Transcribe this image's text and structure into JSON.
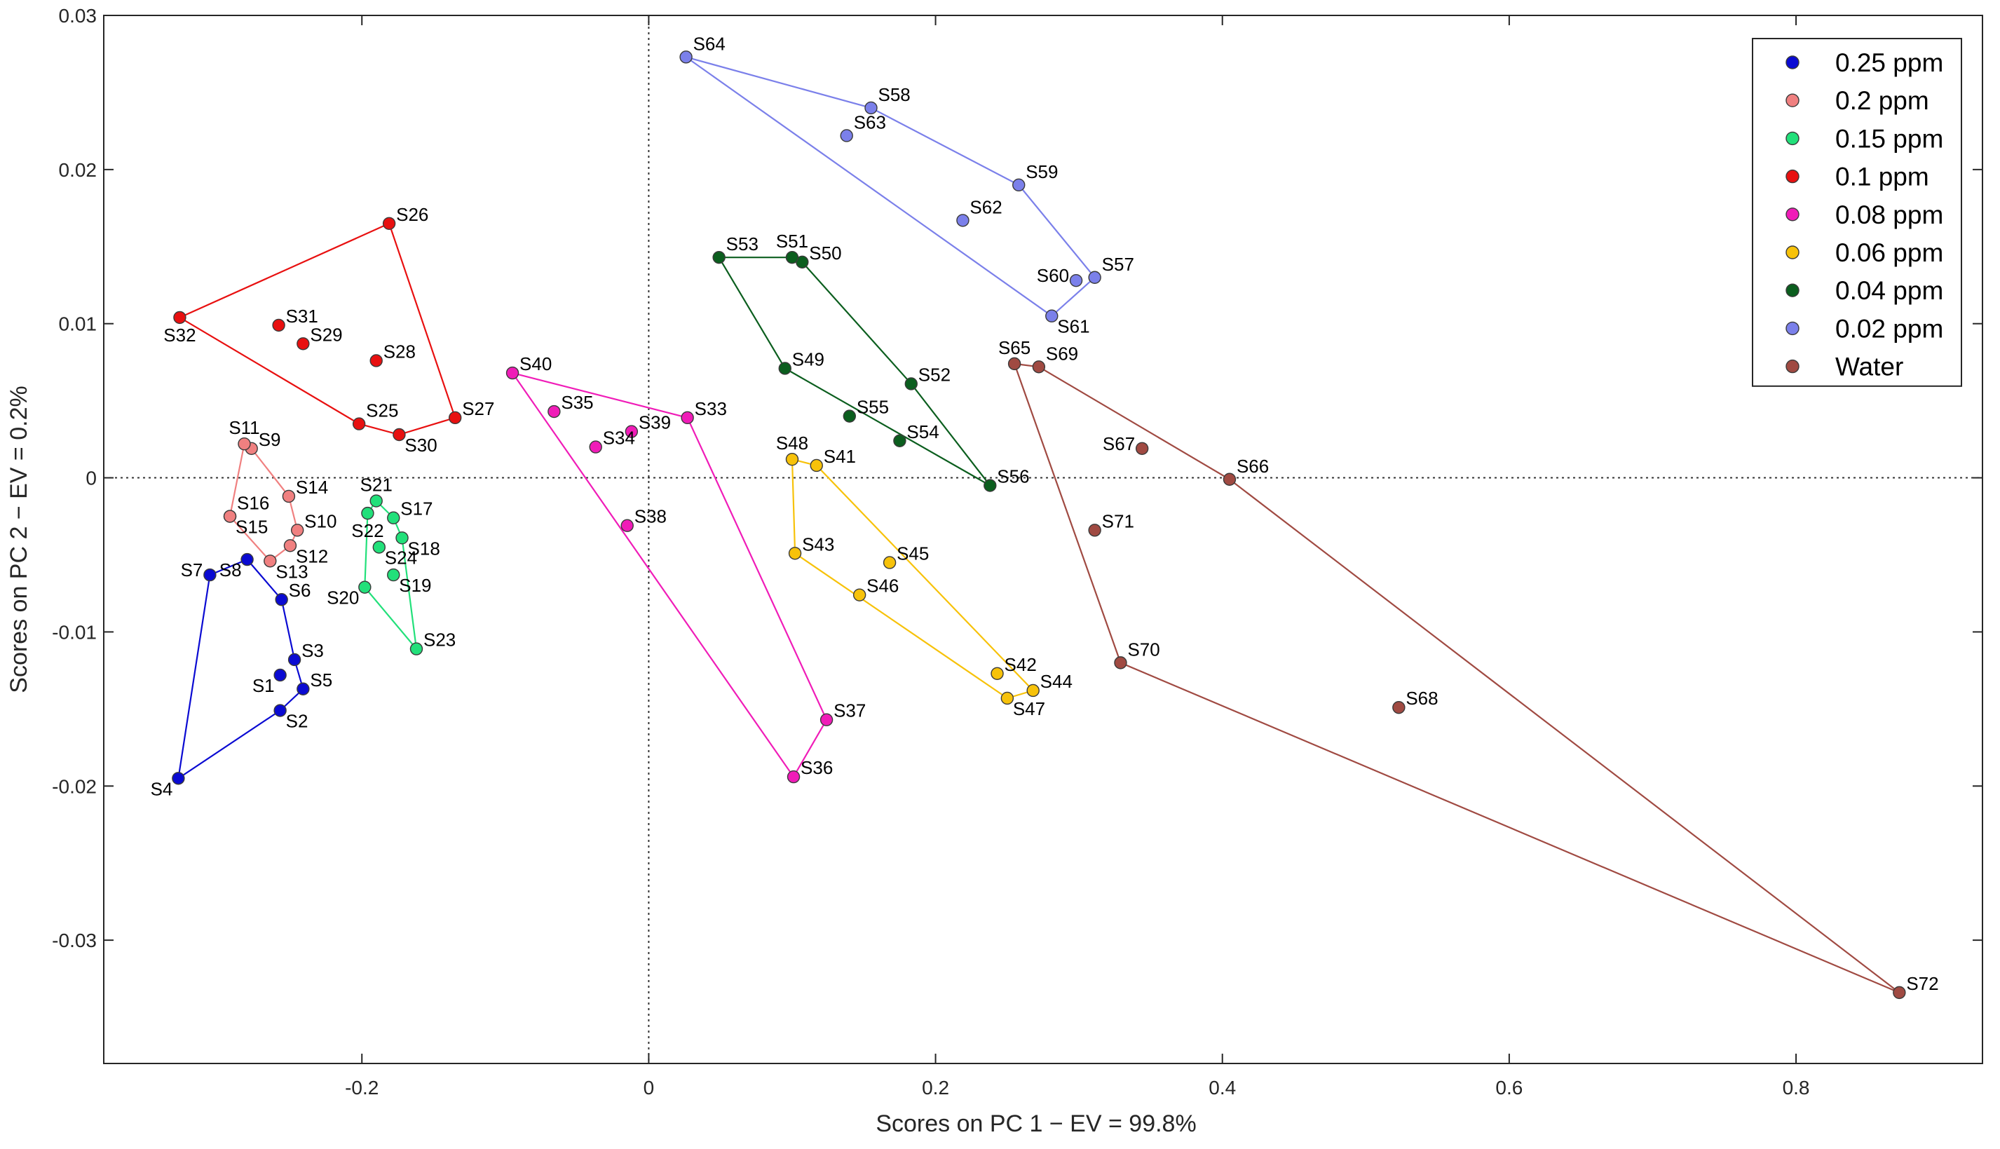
{
  "chart_data": {
    "type": "scatter",
    "xlabel": "Scores  on PC 1 − EV = 99.8%",
    "ylabel": "Scores  on PC 2 − EV = 0.2%",
    "xlim": [
      -0.38,
      0.93
    ],
    "ylim": [
      -0.038,
      0.03
    ],
    "xticks": [
      -0.2,
      0,
      0.2,
      0.4,
      0.6,
      0.8
    ],
    "yticks": [
      0.03,
      0.02,
      0.01,
      0,
      -0.01,
      -0.02,
      -0.03
    ],
    "xtick_labels": [
      "-0.2",
      "0",
      "0.2",
      "0.4",
      "0.6",
      "0.8"
    ],
    "ytick_labels": [
      "0.03",
      "0.02",
      "0.01",
      "0",
      "-0.01",
      "-0.02",
      "-0.03"
    ],
    "zero_lines": true,
    "legend_position": "top-right",
    "series": [
      {
        "name": "0.25 ppm",
        "color": "#0a0ad2",
        "points": [
          {
            "label": "S1",
            "x": -0.257,
            "y": -0.0128,
            "lpos": "bl"
          },
          {
            "label": "S2",
            "x": -0.257,
            "y": -0.0151,
            "lpos": "br"
          },
          {
            "label": "S3",
            "x": -0.247,
            "y": -0.0118,
            "lpos": "r"
          },
          {
            "label": "S4",
            "x": -0.328,
            "y": -0.0195,
            "lpos": "bl"
          },
          {
            "label": "S5",
            "x": -0.241,
            "y": -0.0137,
            "lpos": "r"
          },
          {
            "label": "S6",
            "x": -0.256,
            "y": -0.0079,
            "lpos": "r"
          },
          {
            "label": "S7",
            "x": -0.306,
            "y": -0.0063,
            "lpos": "l"
          },
          {
            "label": "S8",
            "x": -0.28,
            "y": -0.0053,
            "lpos": "bl"
          }
        ],
        "hull": [
          "S4",
          "S7",
          "S8",
          "S6",
          "S3",
          "S5",
          "S2"
        ]
      },
      {
        "name": "0.2 ppm",
        "color": "#f08080",
        "points": [
          {
            "label": "S9",
            "x": -0.277,
            "y": 0.0019,
            "lpos": "r"
          },
          {
            "label": "S10",
            "x": -0.245,
            "y": -0.0034,
            "lpos": "r"
          },
          {
            "label": "S11",
            "x": -0.282,
            "y": 0.0022,
            "lpos": "t"
          },
          {
            "label": "S12",
            "x": -0.25,
            "y": -0.0044,
            "lpos": "br"
          },
          {
            "label": "S13",
            "x": -0.264,
            "y": -0.0054,
            "lpos": "br"
          },
          {
            "label": "S14",
            "x": -0.251,
            "y": -0.0012,
            "lpos": "r"
          },
          {
            "label": "S15",
            "x": -0.292,
            "y": -0.0025,
            "lpos": "br"
          },
          {
            "label": "S16",
            "x": -0.292,
            "y": -0.0025,
            "lpos": "tr"
          }
        ],
        "hull": [
          "S11",
          "S9",
          "S14",
          "S10",
          "S12",
          "S13",
          "S15"
        ]
      },
      {
        "name": "0.15 ppm",
        "color": "#22e07a",
        "points": [
          {
            "label": "S17",
            "x": -0.178,
            "y": -0.0026,
            "lpos": "r"
          },
          {
            "label": "S18",
            "x": -0.172,
            "y": -0.0039,
            "lpos": "br"
          },
          {
            "label": "S19",
            "x": -0.178,
            "y": -0.0063,
            "lpos": "br"
          },
          {
            "label": "S20",
            "x": -0.198,
            "y": -0.0071,
            "lpos": "bl"
          },
          {
            "label": "S21",
            "x": -0.19,
            "y": -0.0015,
            "lpos": "t"
          },
          {
            "label": "S22",
            "x": -0.196,
            "y": -0.0023,
            "lpos": "b"
          },
          {
            "label": "S23",
            "x": -0.162,
            "y": -0.0111,
            "lpos": "r"
          },
          {
            "label": "S24",
            "x": -0.188,
            "y": -0.0045,
            "lpos": "br"
          }
        ],
        "hull": [
          "S21",
          "S17",
          "S18",
          "S23",
          "S20",
          "S22"
        ]
      },
      {
        "name": "0.1 ppm",
        "color": "#e81010",
        "points": [
          {
            "label": "S25",
            "x": -0.202,
            "y": 0.0035,
            "lpos": "tr"
          },
          {
            "label": "S26",
            "x": -0.181,
            "y": 0.0165,
            "lpos": "r"
          },
          {
            "label": "S27",
            "x": -0.135,
            "y": 0.0039,
            "lpos": "r"
          },
          {
            "label": "S28",
            "x": -0.19,
            "y": 0.0076,
            "lpos": "r"
          },
          {
            "label": "S29",
            "x": -0.241,
            "y": 0.0087,
            "lpos": "r"
          },
          {
            "label": "S30",
            "x": -0.174,
            "y": 0.0028,
            "lpos": "br"
          },
          {
            "label": "S31",
            "x": -0.258,
            "y": 0.0099,
            "lpos": "r"
          },
          {
            "label": "S32",
            "x": -0.327,
            "y": 0.0104,
            "lpos": "b"
          }
        ],
        "hull": [
          "S32",
          "S26",
          "S27",
          "S30",
          "S25"
        ]
      },
      {
        "name": "0.08 ppm",
        "color": "#f01cb8",
        "points": [
          {
            "label": "S33",
            "x": 0.027,
            "y": 0.0039,
            "lpos": "r"
          },
          {
            "label": "S34",
            "x": -0.037,
            "y": 0.002,
            "lpos": "r"
          },
          {
            "label": "S35",
            "x": -0.066,
            "y": 0.0043,
            "lpos": "r"
          },
          {
            "label": "S36",
            "x": 0.101,
            "y": -0.0194,
            "lpos": "r"
          },
          {
            "label": "S37",
            "x": 0.124,
            "y": -0.0157,
            "lpos": "r"
          },
          {
            "label": "S38",
            "x": -0.015,
            "y": -0.0031,
            "lpos": "r"
          },
          {
            "label": "S39",
            "x": -0.012,
            "y": 0.003,
            "lpos": "r"
          },
          {
            "label": "S40",
            "x": -0.095,
            "y": 0.0068,
            "lpos": "r"
          }
        ],
        "hull": [
          "S40",
          "S33",
          "S37",
          "S36"
        ]
      },
      {
        "name": "0.06 ppm",
        "color": "#f7c20a",
        "points": [
          {
            "label": "S41",
            "x": 0.117,
            "y": 0.0008,
            "lpos": "r"
          },
          {
            "label": "S42",
            "x": 0.243,
            "y": -0.0127,
            "lpos": "r"
          },
          {
            "label": "S43",
            "x": 0.102,
            "y": -0.0049,
            "lpos": "r"
          },
          {
            "label": "S44",
            "x": 0.268,
            "y": -0.0138,
            "lpos": "r"
          },
          {
            "label": "S45",
            "x": 0.168,
            "y": -0.0055,
            "lpos": "r"
          },
          {
            "label": "S46",
            "x": 0.147,
            "y": -0.0076,
            "lpos": "r"
          },
          {
            "label": "S47",
            "x": 0.25,
            "y": -0.0143,
            "lpos": "br"
          },
          {
            "label": "S48",
            "x": 0.1,
            "y": 0.0012,
            "lpos": "t"
          }
        ],
        "hull": [
          "S48",
          "S41",
          "S44",
          "S47",
          "S43"
        ]
      },
      {
        "name": "0.04 ppm",
        "color": "#0b5e1e",
        "points": [
          {
            "label": "S49",
            "x": 0.095,
            "y": 0.0071,
            "lpos": "r"
          },
          {
            "label": "S50",
            "x": 0.107,
            "y": 0.014,
            "lpos": "r"
          },
          {
            "label": "S51",
            "x": 0.1,
            "y": 0.0143,
            "lpos": "t"
          },
          {
            "label": "S52",
            "x": 0.183,
            "y": 0.0061,
            "lpos": "r"
          },
          {
            "label": "S53",
            "x": 0.049,
            "y": 0.0143,
            "lpos": "tr"
          },
          {
            "label": "S54",
            "x": 0.175,
            "y": 0.0024,
            "lpos": "r"
          },
          {
            "label": "S55",
            "x": 0.14,
            "y": 0.004,
            "lpos": "r"
          },
          {
            "label": "S56",
            "x": 0.238,
            "y": -0.0005,
            "lpos": "r"
          }
        ],
        "hull": [
          "S53",
          "S51",
          "S50",
          "S52",
          "S56",
          "S49"
        ]
      },
      {
        "name": "0.02 ppm",
        "color": "#7b80ea",
        "points": [
          {
            "label": "S57",
            "x": 0.311,
            "y": 0.013,
            "lpos": "tr"
          },
          {
            "label": "S58",
            "x": 0.155,
            "y": 0.024,
            "lpos": "tr"
          },
          {
            "label": "S59",
            "x": 0.258,
            "y": 0.019,
            "lpos": "tr"
          },
          {
            "label": "S60",
            "x": 0.298,
            "y": 0.0128,
            "lpos": "l"
          },
          {
            "label": "S61",
            "x": 0.281,
            "y": 0.0105,
            "lpos": "br"
          },
          {
            "label": "S62",
            "x": 0.219,
            "y": 0.0167,
            "lpos": "tr"
          },
          {
            "label": "S63",
            "x": 0.138,
            "y": 0.0222,
            "lpos": "tr"
          },
          {
            "label": "S64",
            "x": 0.026,
            "y": 0.0273,
            "lpos": "tr"
          }
        ],
        "hull": [
          "S64",
          "S58",
          "S59",
          "S57",
          "S61"
        ]
      },
      {
        "name": "Water",
        "color": "#a04a42",
        "points": [
          {
            "label": "S65",
            "x": 0.255,
            "y": 0.0074,
            "lpos": "t"
          },
          {
            "label": "S66",
            "x": 0.405,
            "y": -0.0001,
            "lpos": "tr"
          },
          {
            "label": "S67",
            "x": 0.344,
            "y": 0.0019,
            "lpos": "l"
          },
          {
            "label": "S68",
            "x": 0.523,
            "y": -0.0149,
            "lpos": "r"
          },
          {
            "label": "S69",
            "x": 0.272,
            "y": 0.0072,
            "lpos": "tr"
          },
          {
            "label": "S70",
            "x": 0.329,
            "y": -0.012,
            "lpos": "tr"
          },
          {
            "label": "S71",
            "x": 0.311,
            "y": -0.0034,
            "lpos": "r"
          },
          {
            "label": "S72",
            "x": 0.872,
            "y": -0.0334,
            "lpos": "r"
          }
        ],
        "hull": [
          "S65",
          "S69",
          "S66",
          "S72",
          "S70"
        ]
      }
    ]
  }
}
